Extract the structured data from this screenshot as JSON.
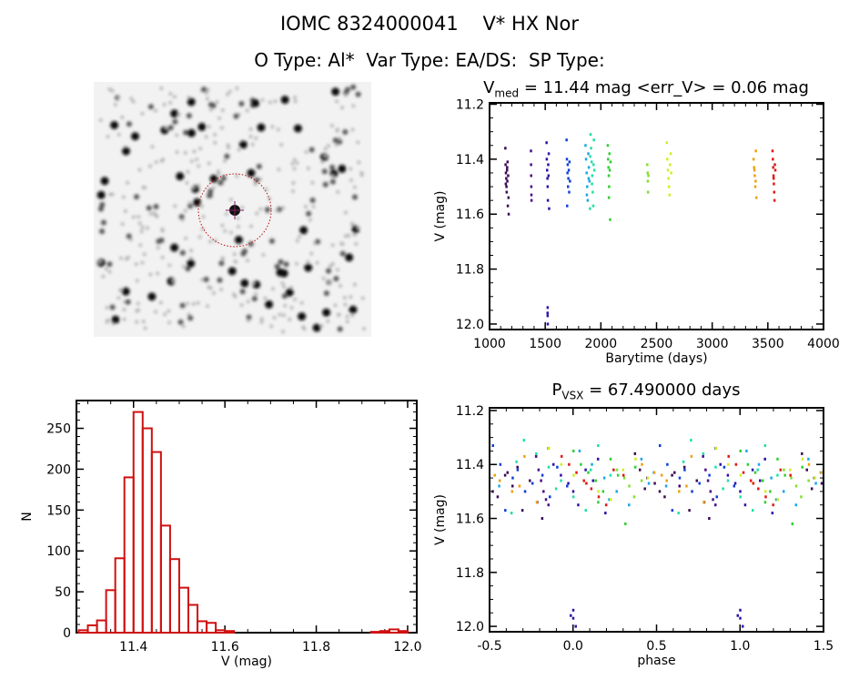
{
  "header": {
    "title": "IOMC 8324000041    V* HX Nor",
    "subtitle": "O Type: Al*  Var Type: EA/DS:  SP Type:"
  },
  "image_panel": {
    "type": "finder-chart"
  },
  "chart_data": [
    {
      "type": "scatter",
      "id": "lightcurve",
      "title_main": "V",
      "title_sub": "med",
      "title_rest": " = 11.44 mag <err_V> = 0.06 mag",
      "xlabel": "Barytime (days)",
      "ylabel": "V (mag)",
      "xlim": [
        1000,
        4000
      ],
      "ylim": [
        11.195,
        12.02
      ],
      "y_inverted": true,
      "xticks": [
        "1000",
        "1500",
        "2000",
        "2500",
        "3000",
        "3500",
        "4000"
      ],
      "yticks": [
        "11.2",
        "11.4",
        "11.6",
        "11.8",
        "12.0"
      ],
      "groups": [
        {
          "color": "#3a0a55",
          "t": [
            1140,
            1142,
            1145,
            1148,
            1150,
            1152,
            1155,
            1158,
            1160,
            1162,
            1165,
            1168,
            1170,
            1144,
            1156
          ],
          "v": [
            11.36,
            11.42,
            11.45,
            11.47,
            11.5,
            11.52,
            11.44,
            11.48,
            11.41,
            11.57,
            11.46,
            11.54,
            11.6,
            11.49,
            11.43
          ]
        },
        {
          "color": "#4b0a8a",
          "t": [
            1370,
            1371,
            1372,
            1373,
            1374,
            1375
          ],
          "v": [
            11.37,
            11.42,
            11.46,
            11.5,
            11.53,
            11.55
          ]
        },
        {
          "color": "#3010a8",
          "t": [
            1510,
            1512,
            1515,
            1518,
            1520,
            1522,
            1525,
            1528,
            1530,
            1533,
            1520,
            1520,
            1521,
            1519
          ],
          "v": [
            11.34,
            11.4,
            11.44,
            11.47,
            11.5,
            11.55,
            11.42,
            11.46,
            11.38,
            11.58,
            11.94,
            11.97,
            12.0,
            11.96
          ]
        },
        {
          "color": "#1040d8",
          "t": [
            1690,
            1693,
            1695,
            1698,
            1700,
            1703,
            1706,
            1710,
            1713,
            1716,
            1720
          ],
          "v": [
            11.33,
            11.4,
            11.57,
            11.45,
            11.42,
            11.5,
            11.47,
            11.44,
            11.52,
            11.41,
            11.48
          ]
        },
        {
          "color": "#18a8e8",
          "t": [
            1860,
            1865,
            1870,
            1875,
            1880,
            1885,
            1890,
            1895,
            1872,
            1888
          ],
          "v": [
            11.35,
            11.4,
            11.45,
            11.5,
            11.55,
            11.38,
            11.43,
            11.48,
            11.53,
            11.47
          ]
        },
        {
          "color": "#20e0a8",
          "t": [
            1900,
            1905,
            1910,
            1915,
            1920,
            1925,
            1930,
            1935,
            1940,
            1902,
            1918,
            1932
          ],
          "v": [
            11.58,
            11.31,
            11.36,
            11.41,
            11.46,
            11.52,
            11.57,
            11.33,
            11.44,
            11.39,
            11.49,
            11.42
          ]
        },
        {
          "color": "#30d030",
          "t": [
            2060,
            2063,
            2066,
            2069,
            2072,
            2075,
            2078,
            2081,
            2085,
            2070
          ],
          "v": [
            11.35,
            11.4,
            11.43,
            11.46,
            11.5,
            11.38,
            11.44,
            11.62,
            11.41,
            11.54
          ]
        },
        {
          "color": "#80e030",
          "t": [
            2415,
            2418,
            2420,
            2422,
            2425
          ],
          "v": [
            11.42,
            11.45,
            11.48,
            11.52,
            11.46
          ]
        },
        {
          "color": "#d0f020",
          "t": [
            2590,
            2595,
            2600,
            2605,
            2610,
            2615,
            2620,
            2625,
            2630
          ],
          "v": [
            11.34,
            11.4,
            11.44,
            11.47,
            11.5,
            11.53,
            11.42,
            11.38,
            11.45
          ]
        },
        {
          "color": "#f0a010",
          "t": [
            3370,
            3375,
            3380,
            3385,
            3390,
            3395,
            3378,
            3388
          ],
          "v": [
            11.4,
            11.43,
            11.46,
            11.5,
            11.37,
            11.54,
            11.44,
            11.48
          ]
        },
        {
          "color": "#e01818",
          "t": [
            3540,
            3543,
            3546,
            3549,
            3552,
            3555,
            3558,
            3561,
            3565,
            3550
          ],
          "v": [
            11.37,
            11.4,
            11.43,
            11.46,
            11.49,
            11.52,
            11.55,
            11.42,
            11.44,
            11.47
          ]
        }
      ]
    },
    {
      "type": "bar",
      "id": "histogram",
      "xlabel": "V (mag)",
      "ylabel": "N",
      "xlim": [
        11.275,
        12.02
      ],
      "ylim": [
        0,
        284
      ],
      "bin_width": 0.02,
      "xticks": [
        "11.4",
        "11.6",
        "11.8",
        "12.0"
      ],
      "yticks": [
        "0",
        "50",
        "100",
        "150",
        "200",
        "250"
      ],
      "bin_centers": [
        11.29,
        11.31,
        11.33,
        11.35,
        11.37,
        11.39,
        11.41,
        11.43,
        11.45,
        11.47,
        11.49,
        11.51,
        11.53,
        11.55,
        11.57,
        11.59,
        11.61,
        11.93,
        11.95,
        11.97,
        11.99
      ],
      "counts": [
        3,
        9,
        15,
        52,
        91,
        190,
        270,
        250,
        221,
        131,
        90,
        55,
        34,
        14,
        12,
        3,
        2,
        1,
        2,
        4,
        2
      ],
      "color": "#d01010"
    },
    {
      "type": "scatter",
      "id": "phased",
      "title_main": "P",
      "title_sub": "VSX",
      "title_rest": " = 67.490000 days",
      "period_days": 67.49,
      "epoch": 1520,
      "xlabel": "phase",
      "ylabel": "V (mag)",
      "xlim": [
        -0.5,
        1.5
      ],
      "ylim": [
        11.19,
        12.02
      ],
      "y_inverted": true,
      "xticks": [
        "-0.5",
        "0.0",
        "0.5",
        "1.0",
        "1.5"
      ],
      "yticks": [
        "11.2",
        "11.4",
        "11.6",
        "11.8",
        "12.0"
      ]
    }
  ]
}
